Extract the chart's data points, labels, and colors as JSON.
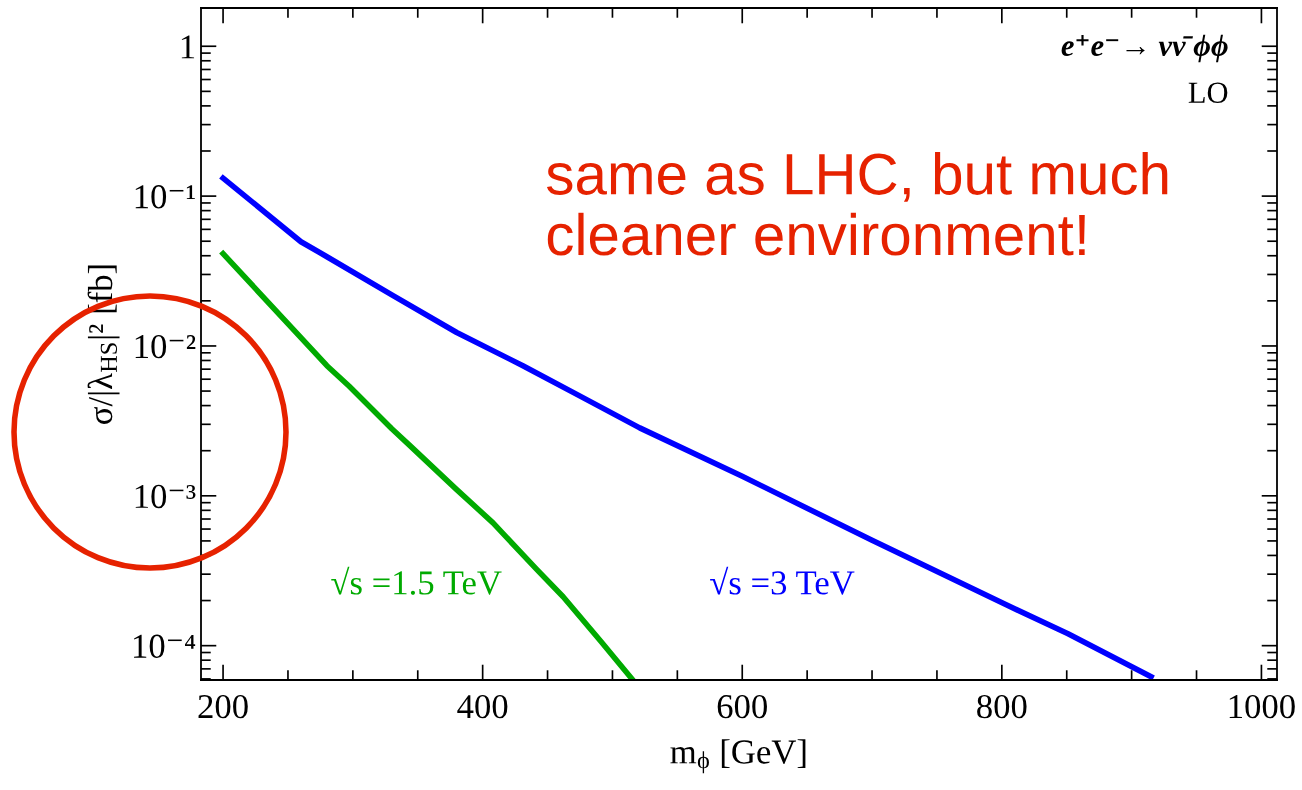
{
  "chart_data": {
    "type": "line",
    "xlabel": "m$_{ϕ}$ [GeV]",
    "ylabel": "σ/|λ$_{HS}$|² [fb]",
    "annotations": [
      "e⁺e⁻→ νν̄ ϕϕ",
      "LO",
      "same as LHC, but much\ncleaner environment!"
    ],
    "log": "y",
    "xlim": [
      183,
      1012
    ],
    "ylim": [
      5.9e-05,
      1.8
    ],
    "xticks": [
      200,
      400,
      600,
      800,
      1000
    ],
    "yticks": [
      {
        "value": 0.0001,
        "label": "10⁻⁴"
      },
      {
        "value": 0.001,
        "label": "10⁻³"
      },
      {
        "value": 0.01,
        "label": "10⁻²"
      },
      {
        "value": 0.1,
        "label": "10⁻¹"
      },
      1
    ],
    "grid": false,
    "legend": false,
    "marker": "none",
    "line_style": "solid",
    "series": [
      {
        "name": "√s =1.5 TeV",
        "color": "#00aa00",
        "x": [
          200,
          280,
          297,
          330,
          345,
          380,
          408,
          442,
          462,
          491,
          515
        ],
        "values": [
          0.0413,
          0.00738,
          0.0054,
          0.0028,
          0.00212,
          0.0011,
          0.00066,
          0.00032,
          0.000212,
          0.000107,
          6e-05
        ]
      },
      {
        "name": "√s =3 TeV",
        "color": "#0000ff",
        "x": [
          200,
          260,
          280,
          331,
          380,
          431,
          474,
          521,
          600,
          700,
          803,
          851,
          915
        ],
        "values": [
          0.132,
          0.0496,
          0.0394,
          0.0217,
          0.0123,
          0.00738,
          0.00468,
          0.00284,
          0.00135,
          0.000505,
          0.000188,
          0.00012,
          6.2e-05
        ]
      }
    ]
  }
}
